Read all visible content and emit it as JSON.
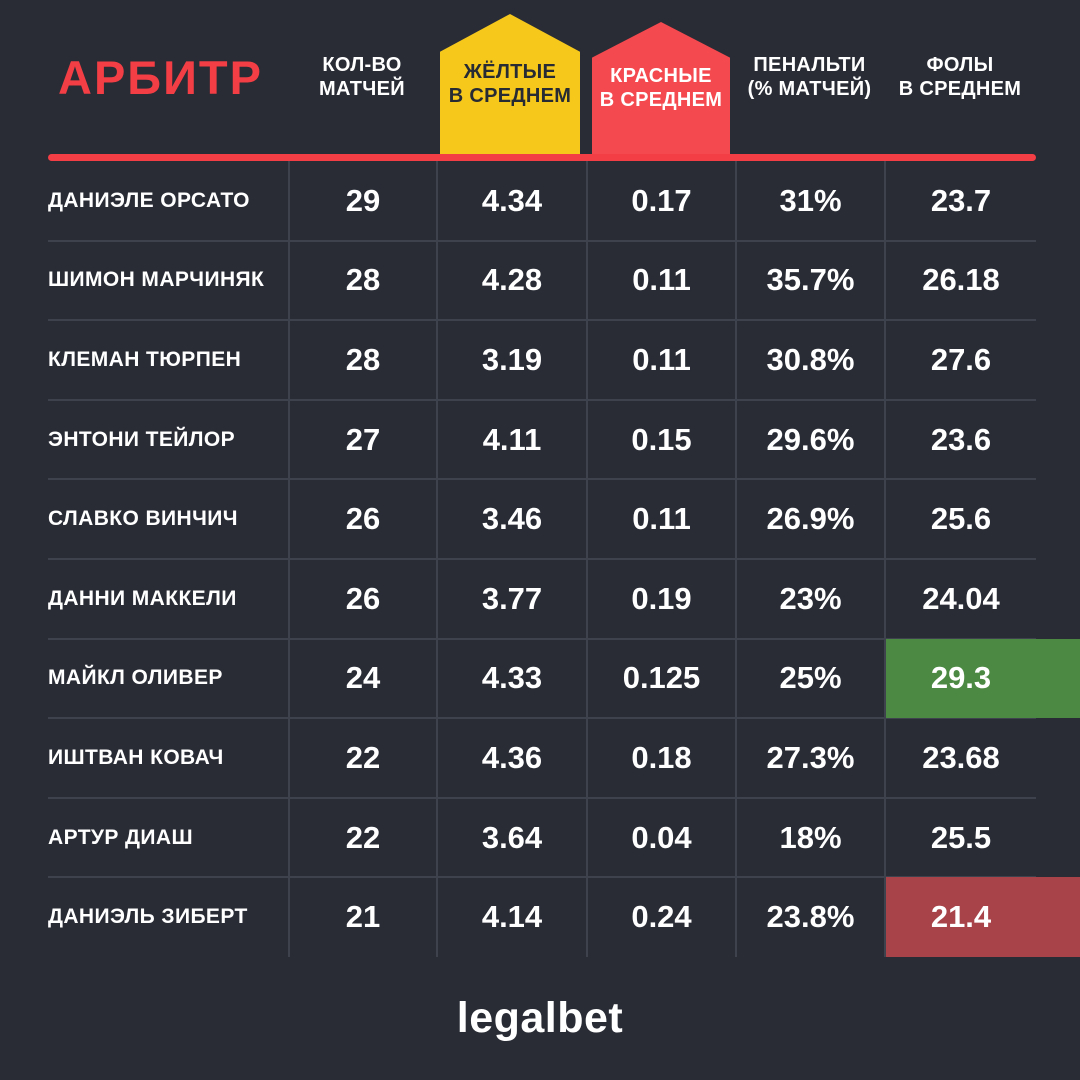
{
  "header": {
    "title": "АРБИТР",
    "column_labels": [
      "КОЛ-ВО\nМАТЧЕЙ",
      "ЖЁЛТЫЕ\nВ СРЕДНЕМ",
      "КРАСНЫЕ\nВ СРЕДНЕМ",
      "ПЕНАЛЬТИ\n(% МАТЧЕЙ)",
      "ФОЛЫ\nВ СРЕДНЕМ"
    ]
  },
  "chart_data": {
    "type": "table",
    "title": "АРБИТР",
    "columns": [
      "АРБИТР",
      "КОЛ-ВО МАТЧЕЙ",
      "ЖЁЛТЫЕ В СРЕДНЕМ",
      "КРАСНЫЕ В СРЕДНЕМ",
      "ПЕНАЛЬТИ (% МАТЧЕЙ)",
      "ФОЛЫ В СРЕДНЕМ"
    ],
    "rows": [
      [
        "ДАНИЭЛЕ ОРСАТО",
        "29",
        "4.34",
        "0.17",
        "31%",
        "23.7"
      ],
      [
        "ШИМОН МАРЧИНЯК",
        "28",
        "4.28",
        "0.11",
        "35.7%",
        "26.18"
      ],
      [
        "КЛЕМАН ТЮРПЕН",
        "28",
        "3.19",
        "0.11",
        "30.8%",
        "27.6"
      ],
      [
        "ЭНТОНИ ТЕЙЛОР",
        "27",
        "4.11",
        "0.15",
        "29.6%",
        "23.6"
      ],
      [
        "СЛАВКО ВИНЧИЧ",
        "26",
        "3.46",
        "0.11",
        "26.9%",
        "25.6"
      ],
      [
        "ДАННИ МАККЕЛИ",
        "26",
        "3.77",
        "0.19",
        "23%",
        "24.04"
      ],
      [
        "МАЙКЛ ОЛИВЕР",
        "24",
        "4.33",
        "0.125",
        "25%",
        "29.3"
      ],
      [
        "ИШТВАН КОВАЧ",
        "22",
        "4.36",
        "0.18",
        "27.3%",
        "23.68"
      ],
      [
        "АРТУР ДИАШ",
        "22",
        "3.64",
        "0.04",
        "18%",
        "25.5"
      ],
      [
        "ДАНИЭЛЬ ЗИБЕРТ",
        "21",
        "4.14",
        "0.24",
        "23.8%",
        "21.4"
      ]
    ],
    "cell_highlights": [
      {
        "row": 6,
        "col": 5,
        "color": "green"
      },
      {
        "row": 9,
        "col": 5,
        "color": "red"
      }
    ]
  },
  "footer": {
    "logo_text": "legalbet"
  },
  "colors": {
    "background": "#292C35",
    "accent_red": "#F23E44",
    "badge_yellow": "#F6C81C",
    "badge_yellow_text": "#272B33",
    "badge_red": "#F4494E",
    "grid_line": "#3D424C",
    "highlight_green": "#4C8A43",
    "highlight_red": "#A8434A",
    "text_white": "#FFFFFF"
  }
}
